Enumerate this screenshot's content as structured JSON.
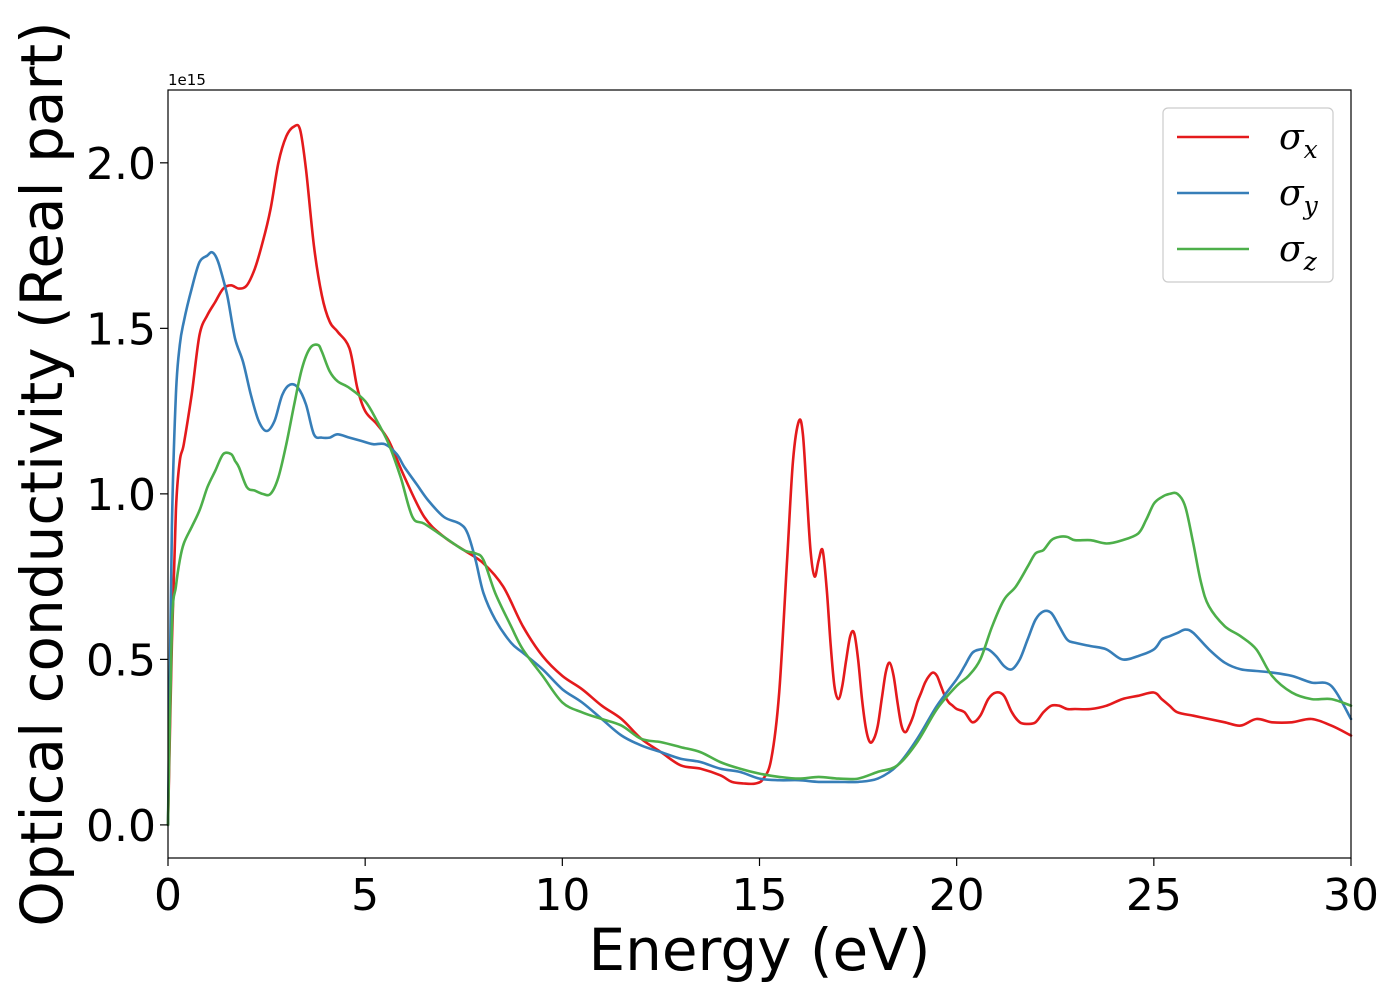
{
  "chart_data": {
    "type": "line",
    "xlabel": "Energy (eV)",
    "ylabel": "Optical conductivity (Real part)",
    "y_offset_label": "1e15",
    "xlim": [
      0,
      30
    ],
    "ylim": [
      -0.1,
      2.22
    ],
    "x_ticks": [
      0,
      5,
      10,
      15,
      20,
      25,
      30
    ],
    "x_tick_labels": [
      "0",
      "5",
      "10",
      "15",
      "20",
      "25",
      "30"
    ],
    "y_ticks": [
      0.0,
      0.5,
      1.0,
      1.5,
      2.0
    ],
    "y_tick_labels": [
      "0.0",
      "0.5",
      "1.0",
      "1.5",
      "2.0"
    ],
    "grid": false,
    "legend_position": "top-right",
    "series": [
      {
        "name": "σx",
        "legend_base": "σ",
        "legend_sub": "x",
        "color": "#e41a1c",
        "x": [
          0,
          0.1,
          0.2,
          0.3,
          0.4,
          0.6,
          0.8,
          1.0,
          1.2,
          1.4,
          1.6,
          1.8,
          2.0,
          2.2,
          2.4,
          2.6,
          2.8,
          3.0,
          3.2,
          3.35,
          3.5,
          3.7,
          3.9,
          4.1,
          4.3,
          4.6,
          4.8,
          5.0,
          5.3,
          5.6,
          6.0,
          6.5,
          7.0,
          7.5,
          8.0,
          8.5,
          9.0,
          9.5,
          10.0,
          10.5,
          11.0,
          11.5,
          12.0,
          12.5,
          13.0,
          13.5,
          14.0,
          14.3,
          14.6,
          14.9,
          15.1,
          15.3,
          15.5,
          15.7,
          15.85,
          16.0,
          16.1,
          16.2,
          16.3,
          16.4,
          16.5,
          16.6,
          16.7,
          16.8,
          16.9,
          17.0,
          17.1,
          17.2,
          17.3,
          17.4,
          17.5,
          17.6,
          17.7,
          17.8,
          17.9,
          18.0,
          18.1,
          18.2,
          18.3,
          18.4,
          18.5,
          18.6,
          18.7,
          18.8,
          18.9,
          19.0,
          19.1,
          19.2,
          19.3,
          19.4,
          19.5,
          19.6,
          19.7,
          19.8,
          19.9,
          20.0,
          20.2,
          20.4,
          20.6,
          20.8,
          21.0,
          21.2,
          21.4,
          21.6,
          21.8,
          22.0,
          22.2,
          22.4,
          22.6,
          22.8,
          23.0,
          23.4,
          23.8,
          24.2,
          24.6,
          25.0,
          25.2,
          25.4,
          25.6,
          26.0,
          26.4,
          26.8,
          27.2,
          27.6,
          28.0,
          28.5,
          29.0,
          29.5,
          30.0
        ],
        "y": [
          0,
          0.55,
          0.95,
          1.1,
          1.15,
          1.3,
          1.48,
          1.54,
          1.58,
          1.62,
          1.63,
          1.62,
          1.63,
          1.68,
          1.76,
          1.86,
          2.0,
          2.08,
          2.11,
          2.1,
          1.98,
          1.75,
          1.6,
          1.52,
          1.49,
          1.44,
          1.32,
          1.25,
          1.21,
          1.16,
          1.05,
          0.93,
          0.87,
          0.83,
          0.79,
          0.72,
          0.6,
          0.51,
          0.45,
          0.41,
          0.36,
          0.32,
          0.26,
          0.22,
          0.18,
          0.17,
          0.15,
          0.13,
          0.125,
          0.125,
          0.14,
          0.2,
          0.4,
          0.8,
          1.1,
          1.22,
          1.18,
          1.0,
          0.82,
          0.75,
          0.8,
          0.83,
          0.72,
          0.55,
          0.42,
          0.38,
          0.42,
          0.5,
          0.57,
          0.58,
          0.5,
          0.38,
          0.29,
          0.25,
          0.26,
          0.3,
          0.38,
          0.46,
          0.49,
          0.45,
          0.37,
          0.3,
          0.28,
          0.3,
          0.33,
          0.37,
          0.4,
          0.43,
          0.45,
          0.46,
          0.45,
          0.42,
          0.39,
          0.37,
          0.36,
          0.35,
          0.34,
          0.31,
          0.33,
          0.38,
          0.4,
          0.39,
          0.34,
          0.31,
          0.305,
          0.31,
          0.34,
          0.36,
          0.36,
          0.35,
          0.35,
          0.35,
          0.36,
          0.38,
          0.39,
          0.4,
          0.38,
          0.36,
          0.34,
          0.33,
          0.32,
          0.31,
          0.3,
          0.32,
          0.31,
          0.31,
          0.32,
          0.3,
          0.27
        ]
      },
      {
        "name": "σy",
        "legend_base": "σ",
        "legend_sub": "y",
        "color": "#377eb8",
        "x": [
          0,
          0.1,
          0.2,
          0.3,
          0.4,
          0.6,
          0.8,
          1.0,
          1.1,
          1.2,
          1.3,
          1.5,
          1.7,
          1.9,
          2.1,
          2.3,
          2.5,
          2.7,
          2.9,
          3.1,
          3.3,
          3.5,
          3.7,
          3.9,
          4.1,
          4.3,
          4.6,
          4.9,
          5.2,
          5.5,
          5.8,
          6.0,
          6.3,
          6.6,
          7.0,
          7.4,
          7.6,
          7.8,
          8.0,
          8.3,
          8.7,
          9.0,
          9.5,
          10.0,
          10.5,
          11.0,
          11.5,
          12.0,
          12.5,
          13.0,
          13.5,
          14.0,
          14.5,
          15.0,
          15.5,
          16.0,
          16.5,
          17.0,
          17.5,
          18.0,
          18.5,
          19.0,
          19.5,
          20.0,
          20.2,
          20.4,
          20.6,
          20.8,
          21.0,
          21.2,
          21.4,
          21.6,
          21.8,
          22.0,
          22.2,
          22.4,
          22.6,
          22.8,
          23.0,
          23.4,
          23.8,
          24.2,
          24.6,
          25.0,
          25.2,
          25.4,
          25.6,
          25.8,
          26.0,
          26.4,
          26.8,
          27.2,
          27.6,
          28.0,
          28.5,
          29.0,
          29.5,
          30.0
        ],
        "y": [
          0,
          0.9,
          1.3,
          1.45,
          1.52,
          1.62,
          1.7,
          1.72,
          1.73,
          1.72,
          1.69,
          1.6,
          1.47,
          1.4,
          1.3,
          1.22,
          1.19,
          1.22,
          1.3,
          1.33,
          1.32,
          1.27,
          1.18,
          1.17,
          1.17,
          1.18,
          1.17,
          1.16,
          1.15,
          1.15,
          1.12,
          1.08,
          1.03,
          0.98,
          0.93,
          0.91,
          0.88,
          0.8,
          0.7,
          0.62,
          0.55,
          0.52,
          0.47,
          0.41,
          0.37,
          0.32,
          0.27,
          0.24,
          0.22,
          0.2,
          0.19,
          0.17,
          0.16,
          0.14,
          0.135,
          0.135,
          0.13,
          0.13,
          0.13,
          0.14,
          0.18,
          0.26,
          0.36,
          0.44,
          0.48,
          0.52,
          0.53,
          0.53,
          0.51,
          0.48,
          0.47,
          0.5,
          0.56,
          0.62,
          0.645,
          0.64,
          0.6,
          0.56,
          0.55,
          0.54,
          0.53,
          0.5,
          0.51,
          0.53,
          0.56,
          0.57,
          0.58,
          0.59,
          0.58,
          0.53,
          0.49,
          0.47,
          0.465,
          0.46,
          0.45,
          0.43,
          0.42,
          0.32
        ]
      },
      {
        "name": "σz",
        "legend_base": "σ",
        "legend_sub": "z",
        "color": "#4daf4a",
        "x": [
          0,
          0.1,
          0.2,
          0.3,
          0.4,
          0.6,
          0.8,
          1.0,
          1.2,
          1.4,
          1.6,
          1.7,
          1.8,
          2.0,
          2.2,
          2.4,
          2.6,
          2.8,
          3.0,
          3.2,
          3.4,
          3.6,
          3.8,
          3.9,
          4.1,
          4.3,
          4.6,
          5.0,
          5.3,
          5.6,
          5.9,
          6.2,
          6.5,
          7.0,
          7.5,
          7.8,
          8.0,
          8.3,
          8.7,
          9.0,
          9.5,
          10.0,
          10.5,
          11.0,
          11.5,
          12.0,
          12.5,
          13.0,
          13.5,
          14.0,
          14.5,
          15.0,
          15.5,
          16.0,
          16.5,
          17.0,
          17.5,
          18.0,
          18.5,
          19.0,
          19.5,
          20.0,
          20.3,
          20.6,
          20.9,
          21.2,
          21.5,
          21.8,
          22.0,
          22.2,
          22.4,
          22.6,
          22.8,
          23.0,
          23.4,
          23.8,
          24.2,
          24.6,
          24.8,
          25.0,
          25.2,
          25.4,
          25.6,
          25.8,
          26.0,
          26.2,
          26.4,
          26.8,
          27.2,
          27.6,
          28.0,
          28.5,
          29.0,
          29.5,
          30.0
        ],
        "y": [
          0,
          0.6,
          0.72,
          0.8,
          0.85,
          0.9,
          0.95,
          1.02,
          1.07,
          1.12,
          1.12,
          1.1,
          1.08,
          1.02,
          1.01,
          1.0,
          1.0,
          1.05,
          1.15,
          1.27,
          1.38,
          1.44,
          1.45,
          1.43,
          1.37,
          1.34,
          1.32,
          1.28,
          1.22,
          1.15,
          1.05,
          0.93,
          0.91,
          0.87,
          0.83,
          0.82,
          0.8,
          0.7,
          0.6,
          0.53,
          0.45,
          0.37,
          0.34,
          0.32,
          0.3,
          0.26,
          0.25,
          0.235,
          0.22,
          0.19,
          0.17,
          0.155,
          0.145,
          0.14,
          0.145,
          0.14,
          0.14,
          0.16,
          0.18,
          0.25,
          0.35,
          0.42,
          0.45,
          0.5,
          0.6,
          0.68,
          0.72,
          0.78,
          0.82,
          0.83,
          0.86,
          0.87,
          0.87,
          0.86,
          0.86,
          0.85,
          0.86,
          0.88,
          0.92,
          0.97,
          0.99,
          1.0,
          1.0,
          0.96,
          0.85,
          0.73,
          0.66,
          0.6,
          0.57,
          0.53,
          0.45,
          0.4,
          0.38,
          0.38,
          0.36
        ]
      }
    ]
  }
}
